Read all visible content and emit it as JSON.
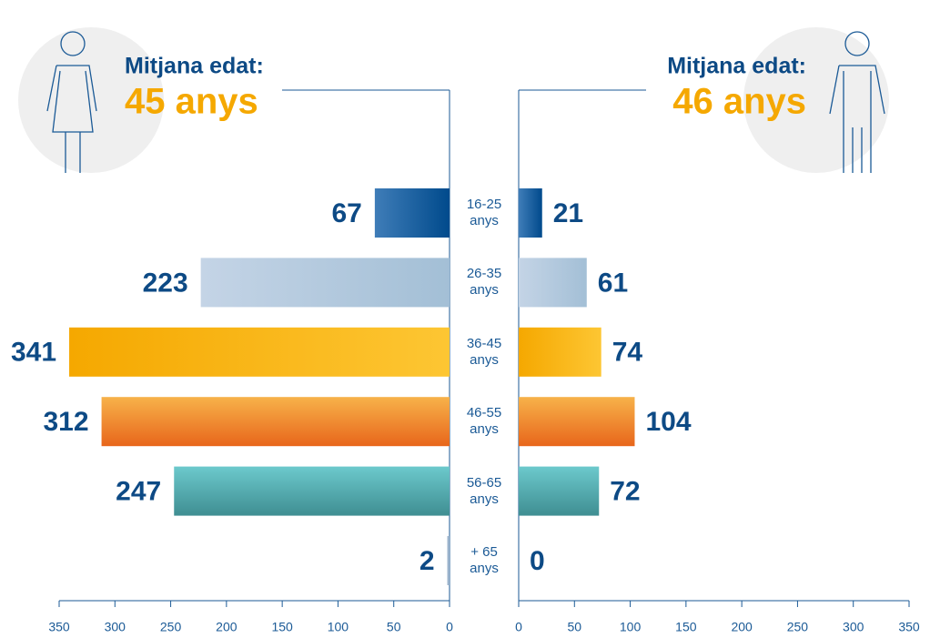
{
  "chart_data": {
    "type": "pyramid",
    "categories": [
      "16-25 anys",
      "26-35 anys",
      "36-45 anys",
      "46-55 anys",
      "56-65 anys",
      "+ 65 anys"
    ],
    "series": [
      {
        "values": [
          67,
          223,
          341,
          312,
          247,
          2
        ]
      },
      {
        "values": [
          21,
          61,
          74,
          104,
          72,
          0
        ]
      }
    ],
    "colors": [
      [
        "#3f7db8",
        "#004a8c"
      ],
      [
        "#c4d4e6",
        "#a3bfd6"
      ],
      [
        "#f5a800",
        "#fdc633"
      ],
      [
        "#f7b24a",
        "#e8661b"
      ],
      [
        "#6cc9cc",
        "#3f8e92"
      ],
      [
        "#9bb3cc",
        "#9bb3cc"
      ]
    ],
    "xlim": [
      0,
      350
    ],
    "xticks": [
      0,
      50,
      100,
      150,
      200,
      250,
      300,
      350
    ],
    "annotations": [
      {
        "label": "Mitjana edat:",
        "value": "45 anys"
      },
      {
        "label": "Mitjana edat:",
        "value": "46 anys"
      }
    ]
  }
}
